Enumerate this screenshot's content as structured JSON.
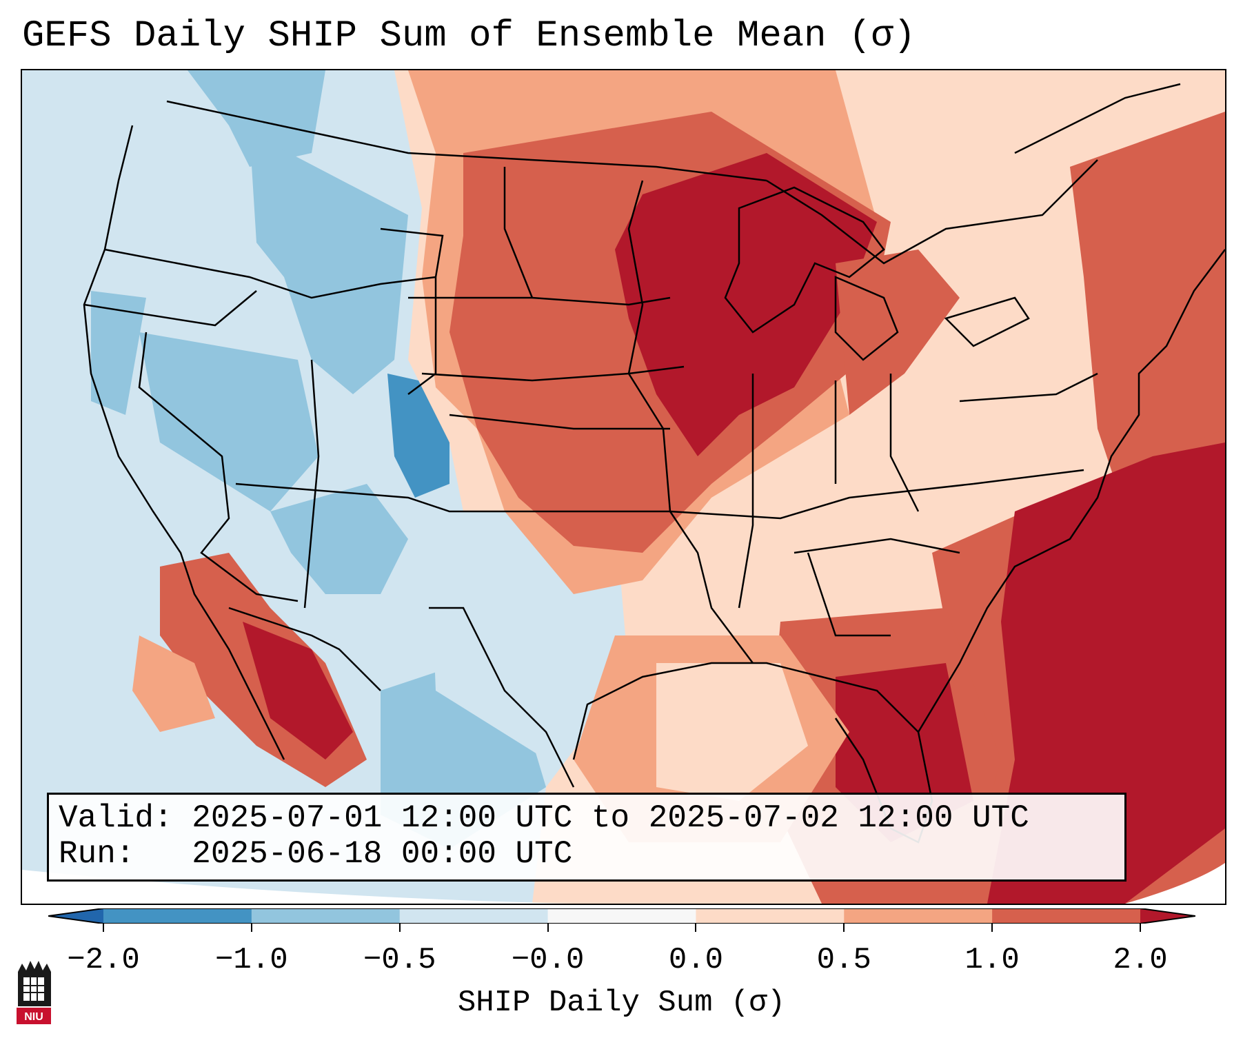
{
  "title": "GEFS Daily SHIP Sum of Ensemble Mean (σ)",
  "info": {
    "valid_label": "Valid:",
    "valid_value": "2025-07-01 12:00 UTC to 2025-07-02 12:00 UTC",
    "run_label": "Run:",
    "run_value": "2025-06-18 00:00 UTC"
  },
  "colorbar": {
    "label": "SHIP Daily Sum (σ)",
    "ticks": [
      "−2.0",
      "−1.0",
      "−0.5",
      "−0.0",
      "0.0",
      "0.5",
      "1.0",
      "2.0"
    ],
    "bin_colors": [
      "#4393c3",
      "#92c5de",
      "#d1e5f0",
      "#f7f7f7",
      "#fddbc7",
      "#f4a582",
      "#d6604d"
    ],
    "under_color": "#2166ac",
    "over_color": "#b2182b"
  },
  "logo": {
    "text": "NIU"
  }
}
